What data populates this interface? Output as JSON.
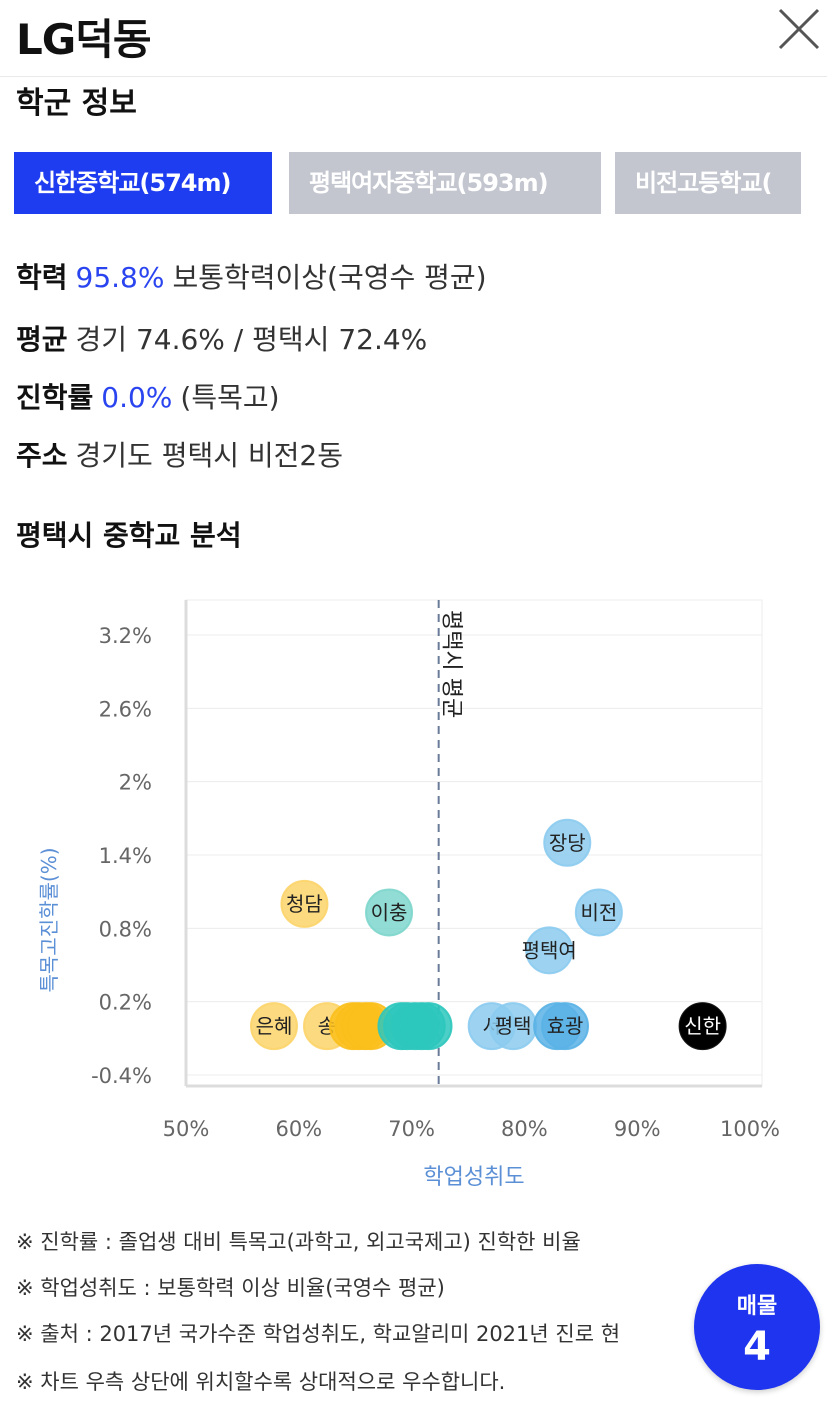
{
  "header": {
    "title": "LG덕동"
  },
  "section": {
    "title": "학군 정보"
  },
  "tabs": [
    {
      "label": "신한중학교(574m)",
      "active": true
    },
    {
      "label": "평택여자중학교(593m)",
      "active": false
    },
    {
      "label": "비전고등학교(",
      "active": false
    }
  ],
  "info": {
    "academic": {
      "label": "학력",
      "value": "95.8%",
      "desc": "보통학력이상(국영수 평균)"
    },
    "average": {
      "label": "평균",
      "text": "경기 74.6% / 평택시 72.4%"
    },
    "advancement": {
      "label": "진학률",
      "value": "0.0%",
      "desc": "(특목고)"
    },
    "address": {
      "label": "주소",
      "text": "경기도 평택시 비전2동"
    }
  },
  "chart_title": "평택시 중학교 분석",
  "chart_data": {
    "type": "scatter",
    "xlabel": "학업성취도",
    "ylabel": "특목고진학률(%)",
    "x_ticks": [
      "50%",
      "60%",
      "70%",
      "80%",
      "90%",
      "100%"
    ],
    "y_ticks": [
      "3.2%",
      "2.6%",
      "2%",
      "1.4%",
      "0.8%",
      "0.2%",
      "-0.4%"
    ],
    "xlim": [
      50,
      100
    ],
    "ylim": [
      -0.4,
      3.2
    ],
    "reference_line": {
      "x": 72.4,
      "label": "평택시 평균"
    },
    "points": [
      {
        "label": "장당",
        "x": 83.8,
        "y": 1.5,
        "color": "#8ccbef"
      },
      {
        "label": "비전",
        "x": 86.6,
        "y": 0.93,
        "color": "#8ccbef"
      },
      {
        "label": "평택여",
        "x": 82.2,
        "y": 0.62,
        "color": "#8ccbef"
      },
      {
        "label": "청담",
        "x": 60.5,
        "y": 1.0,
        "color": "#fcd46a"
      },
      {
        "label": "이충",
        "x": 68.0,
        "y": 0.93,
        "color": "#7ed6cc"
      },
      {
        "label": "은혜",
        "x": 57.8,
        "y": 0.0,
        "color": "#fcd46a"
      },
      {
        "label": "송",
        "x": 62.5,
        "y": 0.0,
        "color": "#fcd46a"
      },
      {
        "label": "",
        "x": 64.8,
        "y": 0.0,
        "color": "#fbbf1c"
      },
      {
        "label": "",
        "x": 65.3,
        "y": 0.0,
        "color": "#fbbf1c"
      },
      {
        "label": "",
        "x": 65.9,
        "y": 0.0,
        "color": "#fbbf1c"
      },
      {
        "label": "",
        "x": 66.4,
        "y": 0.0,
        "color": "#fbbf1c"
      },
      {
        "label": "",
        "x": 69.1,
        "y": 0.0,
        "color": "#2dc7bd"
      },
      {
        "label": "",
        "x": 69.6,
        "y": 0.0,
        "color": "#2dc7bd"
      },
      {
        "label": "",
        "x": 70.3,
        "y": 0.0,
        "color": "#2dc7bd"
      },
      {
        "label": "",
        "x": 70.9,
        "y": 0.0,
        "color": "#2dc7bd"
      },
      {
        "label": "",
        "x": 71.5,
        "y": 0.0,
        "color": "#2dc7bd"
      },
      {
        "label": "서",
        "x": 77.1,
        "y": 0.0,
        "color": "#8ccbef"
      },
      {
        "label": "평택",
        "x": 79.0,
        "y": 0.0,
        "color": "#8ccbef"
      },
      {
        "label": "",
        "x": 82.9,
        "y": 0.0,
        "color": "#5ab2e6"
      },
      {
        "label": "효광",
        "x": 83.6,
        "y": 0.0,
        "color": "#5ab2e6"
      },
      {
        "label": "신한",
        "x": 95.8,
        "y": 0.0,
        "color": "#000000",
        "highlight": true
      }
    ]
  },
  "notes": [
    "※ 진학률 : 졸업생 대비 특목고(과학고, 외고국제고) 진학한 비율",
    "※ 학업성취도 : 보통학력 이상 비율(국영수 평균)",
    "※ 출처 : 2017년 국가수준 학업성취도, 학교알리미 2021년 진로 현",
    "※ 차트 우측 상단에 위치할수록 상대적으로 우수합니다."
  ],
  "listing": {
    "label": "매물",
    "count": "4"
  },
  "colors": {
    "accent": "#1e3cf0",
    "inactive_tab": "#c3c6cf",
    "highlight_text": "#2a45f0"
  }
}
